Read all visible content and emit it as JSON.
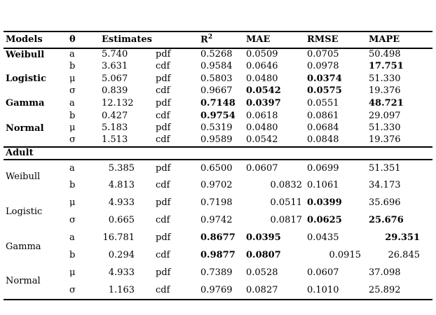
{
  "colors": {
    "background": "#ffffff",
    "text": "#000000",
    "rule": "#000000"
  },
  "table": {
    "headers": {
      "models": "Models",
      "theta": "θ",
      "estimates": "Estimates",
      "dist": "",
      "r2_base": "R",
      "r2_sup": "2",
      "mae": "MAE",
      "rmse": "RMSE",
      "mape": "MAPE"
    },
    "sections": [
      {
        "title": "",
        "rows": [
          {
            "model": "Weibull",
            "theta": "a",
            "estimate": "5.740",
            "dist": "pdf",
            "metrics": [
              {
                "v": "0.5268"
              },
              {
                "v": "0.0509"
              },
              {
                "v": "0.0705"
              },
              {
                "v": "50.498"
              }
            ]
          },
          {
            "model": "",
            "theta": "b",
            "estimate": "3.631",
            "dist": "cdf",
            "metrics": [
              {
                "v": "0.9584"
              },
              {
                "v": "0.0646"
              },
              {
                "v": "0.0978"
              },
              {
                "v": "17.751",
                "bold": true
              }
            ]
          },
          {
            "model": "Logistic",
            "theta": "μ",
            "estimate": "5.067",
            "dist": "pdf",
            "metrics": [
              {
                "v": "0.5803"
              },
              {
                "v": "0.0480"
              },
              {
                "v": "0.0374",
                "bold": true
              },
              {
                "v": "51.330"
              }
            ]
          },
          {
            "model": "",
            "theta": "σ",
            "estimate": "0.839",
            "dist": "cdf",
            "metrics": [
              {
                "v": "0.9667"
              },
              {
                "v": "0.0542",
                "bold": true
              },
              {
                "v": "0.0575",
                "bold": true
              },
              {
                "v": "19.376"
              }
            ]
          },
          {
            "model": "Gamma",
            "theta": "a",
            "estimate": "12.132",
            "dist": "pdf",
            "metrics": [
              {
                "v": "0.7148",
                "bold": true
              },
              {
                "v": "0.0397",
                "bold": true
              },
              {
                "v": "0.0551"
              },
              {
                "v": "48.721",
                "bold": true
              }
            ]
          },
          {
            "model": "",
            "theta": "b",
            "estimate": "0.427",
            "dist": "cdf",
            "metrics": [
              {
                "v": "0.9754",
                "bold": true
              },
              {
                "v": "0.0618"
              },
              {
                "v": "0.0861"
              },
              {
                "v": "29.097"
              }
            ]
          },
          {
            "model": "Normal",
            "theta": "μ",
            "estimate": "5.183",
            "dist": "pdf",
            "metrics": [
              {
                "v": "0.5319"
              },
              {
                "v": "0.0480"
              },
              {
                "v": "0.0684"
              },
              {
                "v": "51.330"
              }
            ]
          },
          {
            "model": "",
            "theta": "σ",
            "estimate": "1.513",
            "dist": "cdf",
            "metrics": [
              {
                "v": "0.9589"
              },
              {
                "v": "0.0542"
              },
              {
                "v": "0.0848"
              },
              {
                "v": "19.376"
              }
            ]
          }
        ]
      },
      {
        "title": "Adult",
        "rows": [
          {
            "model": "Weibull",
            "theta": "a",
            "estimate": "5.385",
            "dist": "pdf",
            "metrics": [
              {
                "v": "0.6500"
              },
              {
                "v": "0.0607"
              },
              {
                "v": "0.0699"
              },
              {
                "v": "51.351"
              }
            ]
          },
          {
            "model": "",
            "theta": "b",
            "estimate": "4.813",
            "dist": "cdf",
            "metrics": [
              {
                "v": "0.9702"
              },
              {
                "v": "0.0832",
                "right": true
              },
              {
                "v": "0.1061"
              },
              {
                "v": "34.173"
              }
            ]
          },
          {
            "model": "Logistic",
            "theta": "μ",
            "estimate": "4.933",
            "dist": "pdf",
            "metrics": [
              {
                "v": "0.7198"
              },
              {
                "v": "0.0511",
                "right": true
              },
              {
                "v": "0.0399",
                "bold": true
              },
              {
                "v": "35.696"
              }
            ]
          },
          {
            "model": "",
            "theta": "σ",
            "estimate": "0.665",
            "dist": "cdf",
            "metrics": [
              {
                "v": "0.9742"
              },
              {
                "v": "0.0817",
                "right": true
              },
              {
                "v": "0.0625",
                "bold": true
              },
              {
                "v": "25.676",
                "bold": true
              }
            ]
          },
          {
            "model": "Gamma",
            "theta": "a",
            "estimate": "16.781",
            "dist": "pdf",
            "metrics": [
              {
                "v": "0.8677",
                "bold": true
              },
              {
                "v": "0.0395",
                "bold": true
              },
              {
                "v": "0.0435"
              },
              {
                "v": "29.351",
                "bold": true,
                "right": true
              }
            ]
          },
          {
            "model": "",
            "theta": "b",
            "estimate": "0.294",
            "dist": "cdf",
            "metrics": [
              {
                "v": "0.9877",
                "bold": true
              },
              {
                "v": "0.0807",
                "bold": true
              },
              {
                "v": "0.0915",
                "right": true
              },
              {
                "v": "26.845",
                "right": true
              }
            ]
          },
          {
            "model": "Normal",
            "theta": "μ",
            "estimate": "4.933",
            "dist": "pdf",
            "metrics": [
              {
                "v": "0.7389"
              },
              {
                "v": "0.0528"
              },
              {
                "v": "0.0607"
              },
              {
                "v": "37.098"
              }
            ]
          },
          {
            "model": "",
            "theta": "σ",
            "estimate": "1.163",
            "dist": "cdf",
            "metrics": [
              {
                "v": "0.9769"
              },
              {
                "v": "0.0827"
              },
              {
                "v": "0.1010"
              },
              {
                "v": "25.892"
              }
            ]
          }
        ]
      }
    ]
  }
}
